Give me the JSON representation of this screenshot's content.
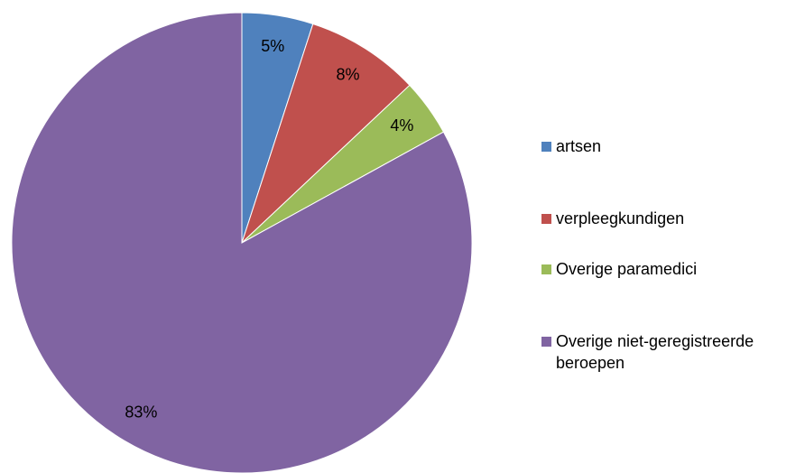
{
  "chart_data": {
    "type": "pie",
    "categories": [
      "artsen",
      "verpleegkundigen",
      "Overige paramedici",
      "Overige niet-geregistreerde beroepen"
    ],
    "values": [
      5,
      8,
      4,
      83
    ],
    "value_labels": [
      "5%",
      "8%",
      "4%",
      "83%"
    ],
    "colors": [
      "#4f81bd",
      "#c0504d",
      "#9bbb59",
      "#8064a2"
    ],
    "legend": "right"
  }
}
